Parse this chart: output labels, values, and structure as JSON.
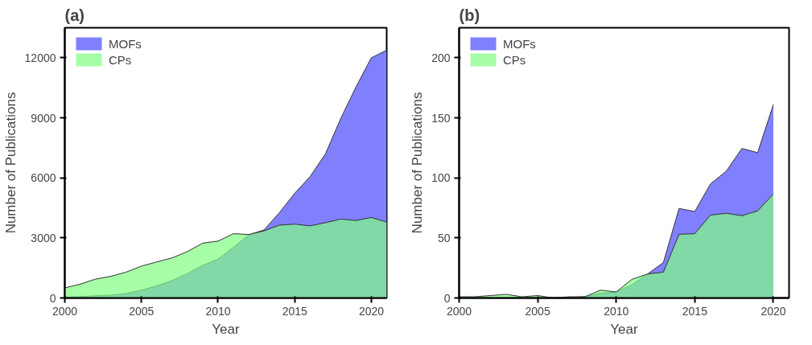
{
  "chart_data": [
    {
      "type": "area",
      "title": "(a)",
      "xlabel": "Year",
      "ylabel": "Number of Publications",
      "x": [
        2000,
        2001,
        2002,
        2003,
        2004,
        2005,
        2006,
        2007,
        2008,
        2009,
        2010,
        2011,
        2012,
        2013,
        2014,
        2015,
        2016,
        2017,
        2018,
        2019,
        2020,
        2021
      ],
      "series": [
        {
          "name": "MOFs",
          "color": "#8080ff",
          "values": [
            40,
            70,
            110,
            140,
            220,
            390,
            600,
            870,
            1220,
            1630,
            1940,
            2530,
            3150,
            3400,
            4260,
            5230,
            6060,
            7190,
            8960,
            10550,
            12000,
            12380
          ]
        },
        {
          "name": "CPs",
          "color": "#80ff80",
          "values": [
            500,
            690,
            940,
            1080,
            1290,
            1590,
            1800,
            2000,
            2320,
            2740,
            2840,
            3210,
            3170,
            3350,
            3640,
            3690,
            3600,
            3760,
            3940,
            3870,
            4020,
            3790
          ]
        }
      ],
      "xlim": [
        2000,
        2021
      ],
      "ylim": [
        0,
        13500
      ],
      "xticks": [
        2000,
        2005,
        2010,
        2015,
        2020
      ],
      "yticks": [
        0,
        3000,
        6000,
        9000,
        12000
      ],
      "legend": "top left",
      "grid": false
    },
    {
      "type": "area",
      "title": "(b)",
      "xlabel": "Year",
      "ylabel": "Number of Publications",
      "x": [
        2000,
        2001,
        2002,
        2003,
        2004,
        2005,
        2006,
        2007,
        2008,
        2009,
        2010,
        2011,
        2012,
        2013,
        2014,
        2015,
        2016,
        2017,
        2018,
        2019,
        2020
      ],
      "series": [
        {
          "name": "MOFs",
          "color": "#8080ff",
          "values": [
            0.5,
            0.5,
            0.5,
            0.5,
            0.5,
            0.5,
            0,
            0.5,
            1,
            4,
            5,
            11,
            20,
            29.5,
            74.5,
            72,
            95,
            105.5,
            124.5,
            121,
            161
          ]
        },
        {
          "name": "CPs",
          "color": "#80ff80",
          "values": [
            1,
            1,
            2,
            3,
            1,
            2,
            0,
            1,
            1,
            6.5,
            5,
            15.5,
            20,
            21.5,
            53,
            53.5,
            69,
            70.5,
            68.5,
            72.5,
            86.5
          ]
        }
      ],
      "xlim": [
        2000,
        2021
      ],
      "ylim": [
        0,
        225
      ],
      "xticks": [
        2000,
        2005,
        2010,
        2015,
        2020
      ],
      "yticks": [
        0,
        50,
        100,
        150,
        200
      ],
      "legend": "top left",
      "grid": false
    }
  ]
}
